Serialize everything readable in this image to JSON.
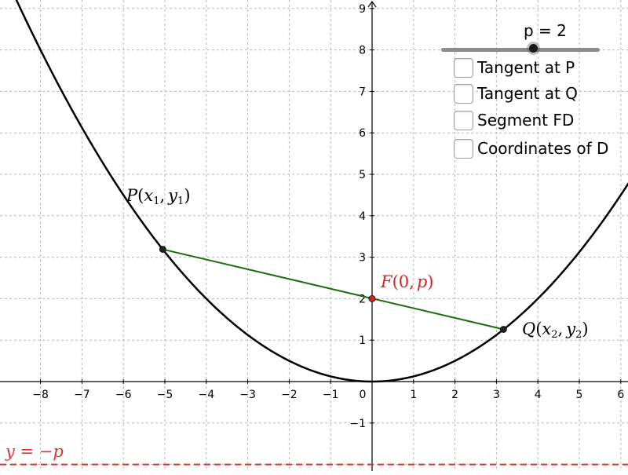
{
  "graph": {
    "x_ticks": [
      "−8",
      "−7",
      "−6",
      "−5",
      "−4",
      "−3",
      "−2",
      "−1",
      "0",
      "1",
      "2",
      "3",
      "4",
      "5",
      "6"
    ],
    "x_tick_values": [
      -8,
      -7,
      -6,
      -5,
      -4,
      -3,
      -2,
      -1,
      0,
      1,
      2,
      3,
      4,
      5,
      6
    ],
    "y_ticks": [
      "−1",
      "1",
      "2",
      "3",
      "4",
      "5",
      "6",
      "7",
      "8",
      "9"
    ],
    "y_tick_values": [
      -1,
      1,
      2,
      3,
      4,
      5,
      6,
      7,
      8,
      9
    ],
    "x_range": [
      -9,
      6.3
    ],
    "y_range": [
      -2,
      9.3
    ],
    "p": 2,
    "point_P": {
      "x": -5.05,
      "y": 3.19
    },
    "point_Q": {
      "x": 3.17,
      "y": 1.26
    },
    "focus_F": {
      "x": 0,
      "y": 2
    },
    "labels": {
      "P_letter": "P",
      "P_open": "(",
      "P_x": "x",
      "P_x_sub": "1",
      "P_comma": ",",
      "P_y": "y",
      "P_y_sub": "1",
      "P_close": ")",
      "Q_letter": "Q",
      "Q_open": "(",
      "Q_x": "x",
      "Q_x_sub": "2",
      "Q_comma": ",",
      "Q_y": "y",
      "Q_y_sub": "2",
      "Q_close": ")",
      "F_text": "F",
      "F_args": "(0,",
      "F_p": "p",
      "F_close": ")",
      "directrix_y": "y",
      "directrix_eq": " = −",
      "directrix_p": "p"
    },
    "colors": {
      "curve": "#000000",
      "chord": "#1f6b10",
      "focus": "#e02020",
      "directrix": "#e03030",
      "grid": "#b8b8b8"
    }
  },
  "controls": {
    "slider_label": "p = 2",
    "slider_value": 2,
    "checkboxes": [
      {
        "label": "Tangent at P",
        "checked": false
      },
      {
        "label": "Tangent at Q",
        "checked": false
      },
      {
        "label": "Segment FD",
        "checked": false
      },
      {
        "label": "Coordinates of D",
        "checked": false
      }
    ]
  }
}
